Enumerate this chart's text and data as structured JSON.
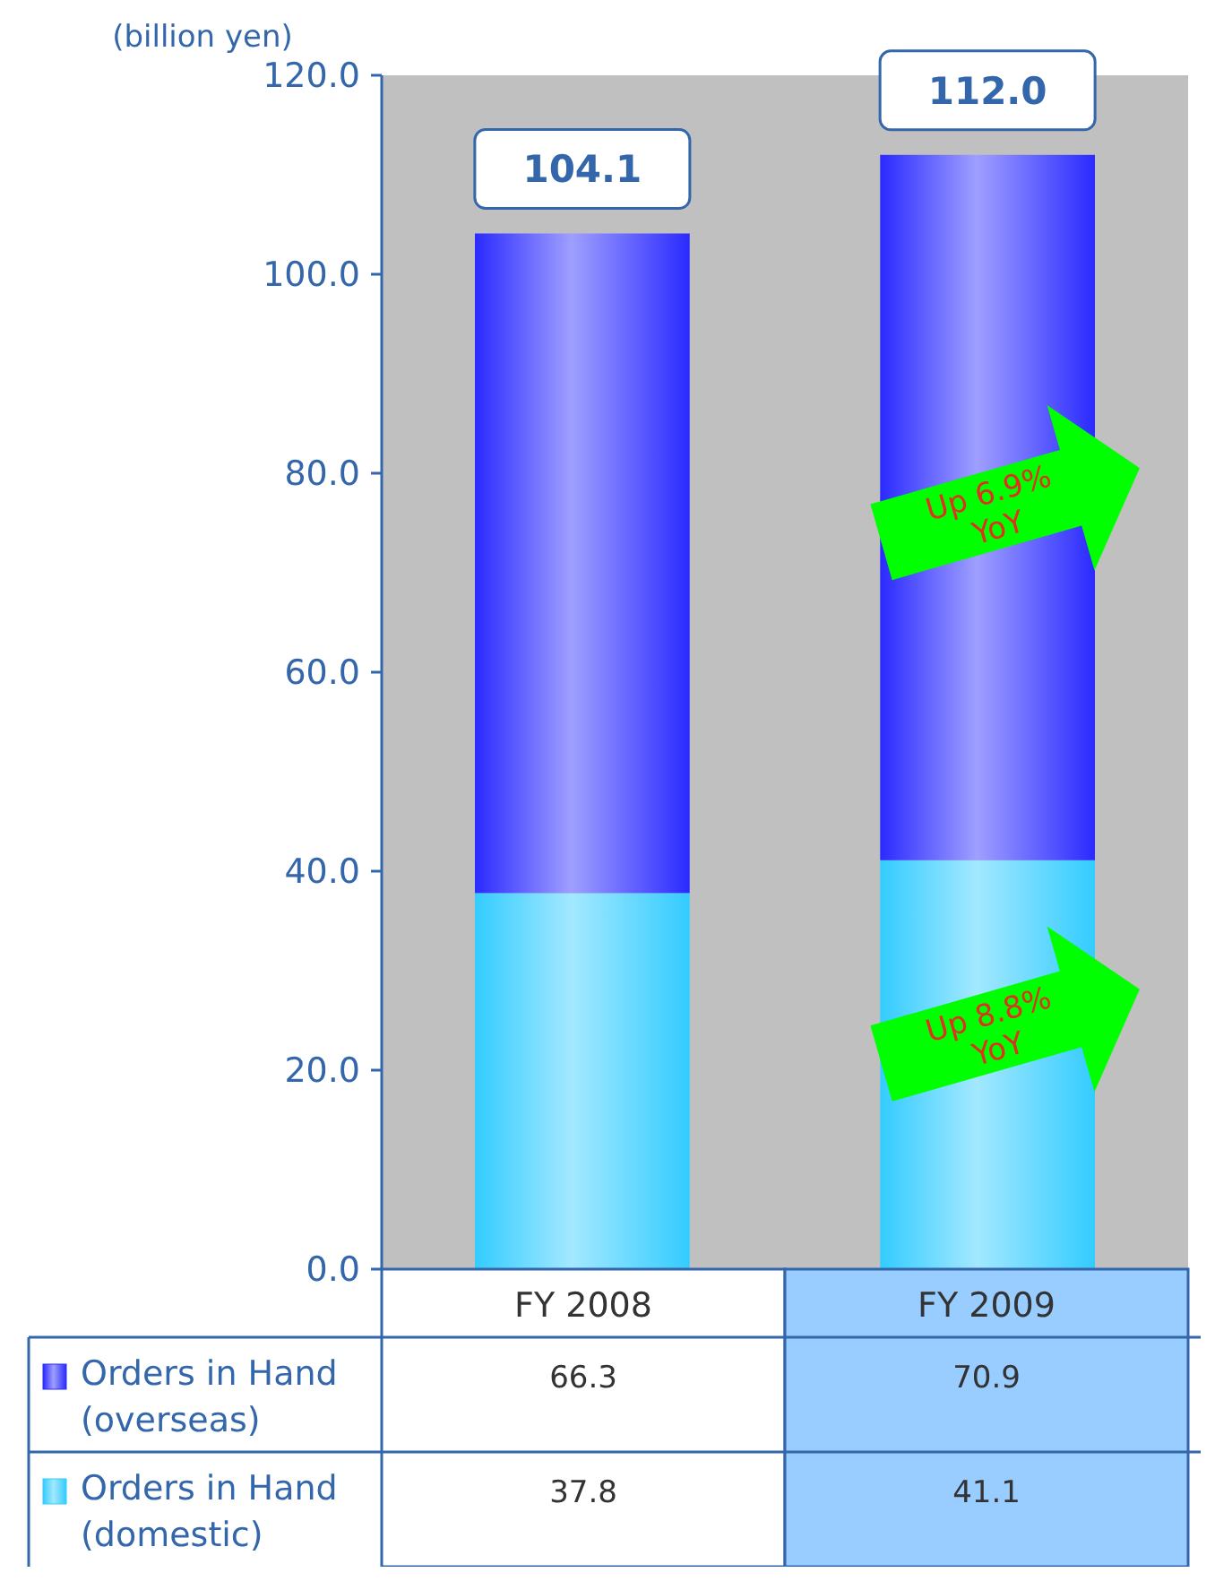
{
  "chart_data": {
    "type": "bar",
    "stacked": true,
    "ylabel": "(billion yen)",
    "categories": [
      "FY 2008",
      "FY 2009"
    ],
    "series": [
      {
        "name": "Orders in Hand (domestic)",
        "color": "#33ccff",
        "values": [
          37.8,
          41.1
        ]
      },
      {
        "name": "Orders in Hand (overseas)",
        "color": "#2a2aff",
        "values": [
          66.3,
          70.9
        ]
      }
    ],
    "ylim": [
      0,
      120
    ],
    "yticks": [
      {
        "value": 0,
        "label": "0.0"
      },
      {
        "value": 20,
        "label": "20.0"
      },
      {
        "value": 40,
        "label": "40.0"
      },
      {
        "value": 60,
        "label": "60.0"
      },
      {
        "value": 80,
        "label": "80.0"
      },
      {
        "value": 100,
        "label": "100.0"
      },
      {
        "value": 120,
        "label": "120.0"
      }
    ],
    "totals": [
      "104.1",
      "112.0"
    ],
    "data_labels": true,
    "legend": "bottom",
    "grid": false,
    "annotations": [
      "Up 6.9% YoY",
      "Up 8.8% YoY"
    ]
  }
}
